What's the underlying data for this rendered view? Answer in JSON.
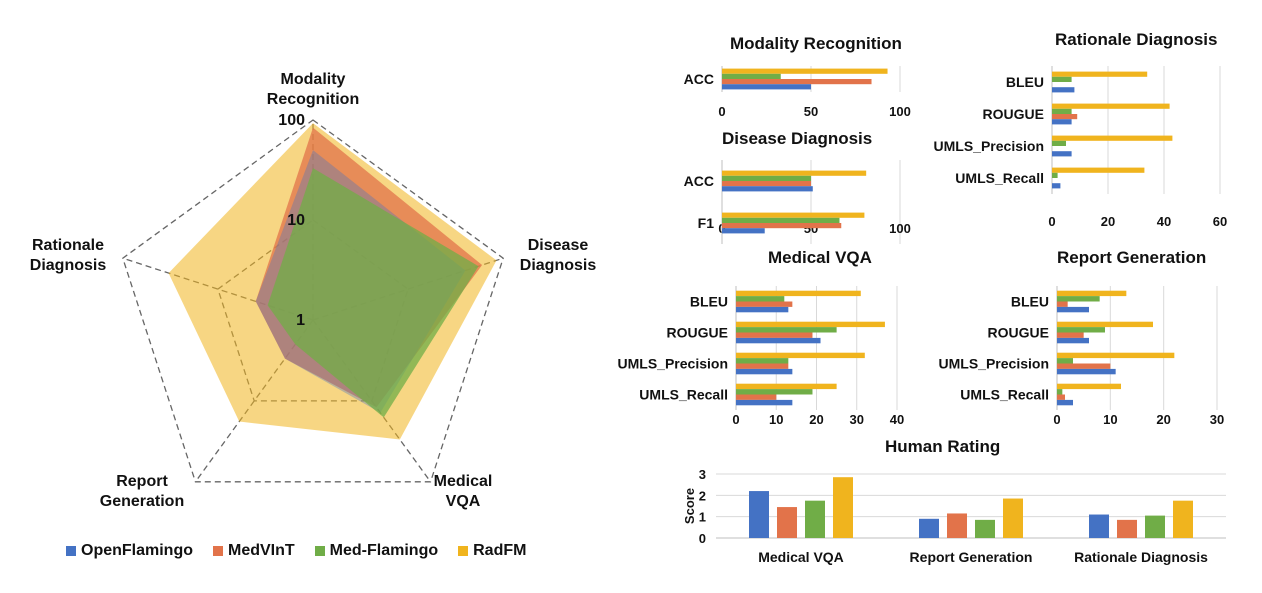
{
  "colors": {
    "OpenFlamingo": "#4472C4",
    "MedVInT": "#E2734A",
    "Med-Flamingo": "#70AD47",
    "RadFM": "#F0B41E"
  },
  "legend": [
    "OpenFlamingo",
    "MedVInT",
    "Med-Flamingo",
    "RadFM"
  ],
  "chart_data": [
    {
      "type": "radar",
      "scale": "log",
      "axes": [
        "Modality Recognition",
        "Disease Diagnosis",
        "Medical VQA",
        "Report Generation",
        "Rationale Diagnosis"
      ],
      "axis_labels": [
        [
          "Modality",
          "Recognition"
        ],
        [
          "Disease",
          "Diagnosis"
        ],
        [
          "Medical",
          "VQA"
        ],
        [
          "Report",
          "Generation"
        ],
        [
          "Rationale",
          "Diagnosis"
        ]
      ],
      "ring_labels": [
        "100",
        "10",
        "1"
      ],
      "series": [
        {
          "name": "OpenFlamingo",
          "values": [
            50,
            40,
            14,
            3,
            4
          ]
        },
        {
          "name": "MedVInT",
          "values": [
            84,
            60,
            12,
            3,
            4
          ]
        },
        {
          "name": "Med-Flamingo",
          "values": [
            33,
            55,
            16,
            2,
            3
          ]
        },
        {
          "name": "RadFM",
          "values": [
            93,
            85,
            30,
            18,
            33
          ]
        }
      ]
    },
    {
      "type": "bar",
      "orientation": "horizontal",
      "title": "Modality Recognition",
      "categories": [
        "ACC"
      ],
      "xlim": [
        0,
        100
      ],
      "xticks": [
        "0",
        "50",
        "100"
      ],
      "series": [
        {
          "name": "OpenFlamingo",
          "values": [
            50
          ]
        },
        {
          "name": "MedVInT",
          "values": [
            84
          ]
        },
        {
          "name": "Med-Flamingo",
          "values": [
            33
          ]
        },
        {
          "name": "RadFM",
          "values": [
            93
          ]
        }
      ]
    },
    {
      "type": "bar",
      "orientation": "horizontal",
      "title": "Disease Diagnosis",
      "categories": [
        "ACC",
        "F1"
      ],
      "xlim": [
        0,
        100
      ],
      "xticks": [
        "0",
        "50",
        "100"
      ],
      "series": [
        {
          "name": "OpenFlamingo",
          "values": [
            51,
            24
          ]
        },
        {
          "name": "MedVInT",
          "values": [
            50,
            67
          ]
        },
        {
          "name": "Med-Flamingo",
          "values": [
            50,
            66
          ]
        },
        {
          "name": "RadFM",
          "values": [
            81,
            80
          ]
        }
      ]
    },
    {
      "type": "bar",
      "orientation": "horizontal",
      "title": "Rationale Diagnosis",
      "categories": [
        "BLEU",
        "ROUGUE",
        "UMLS_Precision",
        "UMLS_Recall"
      ],
      "xlim": [
        0,
        60
      ],
      "xticks": [
        "0",
        "20",
        "40",
        "60"
      ],
      "series": [
        {
          "name": "OpenFlamingo",
          "values": [
            8,
            7,
            7,
            3
          ]
        },
        {
          "name": "MedVInT",
          "values": [
            0,
            9,
            0,
            0
          ]
        },
        {
          "name": "Med-Flamingo",
          "values": [
            7,
            7,
            5,
            2
          ]
        },
        {
          "name": "RadFM",
          "values": [
            34,
            42,
            43,
            33
          ]
        }
      ]
    },
    {
      "type": "bar",
      "orientation": "horizontal",
      "title": "Medical VQA",
      "categories": [
        "BLEU",
        "ROUGUE",
        "UMLS_Precision",
        "UMLS_Recall"
      ],
      "xlim": [
        0,
        40
      ],
      "xticks": [
        "0",
        "10",
        "20",
        "30",
        "40"
      ],
      "series": [
        {
          "name": "OpenFlamingo",
          "values": [
            13,
            21,
            14,
            14
          ]
        },
        {
          "name": "MedVInT",
          "values": [
            14,
            19,
            13,
            10
          ]
        },
        {
          "name": "Med-Flamingo",
          "values": [
            12,
            25,
            13,
            19
          ]
        },
        {
          "name": "RadFM",
          "values": [
            31,
            37,
            32,
            25
          ]
        }
      ]
    },
    {
      "type": "bar",
      "orientation": "horizontal",
      "title": "Report Generation",
      "categories": [
        "BLEU",
        "ROUGUE",
        "UMLS_Precision",
        "UMLS_Recall"
      ],
      "xlim": [
        0,
        30
      ],
      "xticks": [
        "0",
        "10",
        "20",
        "30"
      ],
      "series": [
        {
          "name": "OpenFlamingo",
          "values": [
            6,
            6,
            11,
            3
          ]
        },
        {
          "name": "MedVInT",
          "values": [
            2,
            5,
            10,
            1.5
          ]
        },
        {
          "name": "Med-Flamingo",
          "values": [
            8,
            9,
            3,
            1
          ]
        },
        {
          "name": "RadFM",
          "values": [
            13,
            18,
            22,
            12
          ]
        }
      ]
    },
    {
      "type": "bar",
      "orientation": "vertical",
      "title": "Human Rating",
      "categories": [
        "Medical VQA",
        "Report Generation",
        "Rationale Diagnosis"
      ],
      "ylabel": "Score",
      "ylim": [
        0,
        3
      ],
      "yticks": [
        "0",
        "1",
        "2",
        "3"
      ],
      "series": [
        {
          "name": "OpenFlamingo",
          "values": [
            2.2,
            0.9,
            1.1
          ]
        },
        {
          "name": "MedVInT",
          "values": [
            1.45,
            1.15,
            0.85
          ]
        },
        {
          "name": "Med-Flamingo",
          "values": [
            1.75,
            0.85,
            1.05
          ]
        },
        {
          "name": "RadFM",
          "values": [
            2.85,
            1.85,
            1.75
          ]
        }
      ]
    }
  ]
}
